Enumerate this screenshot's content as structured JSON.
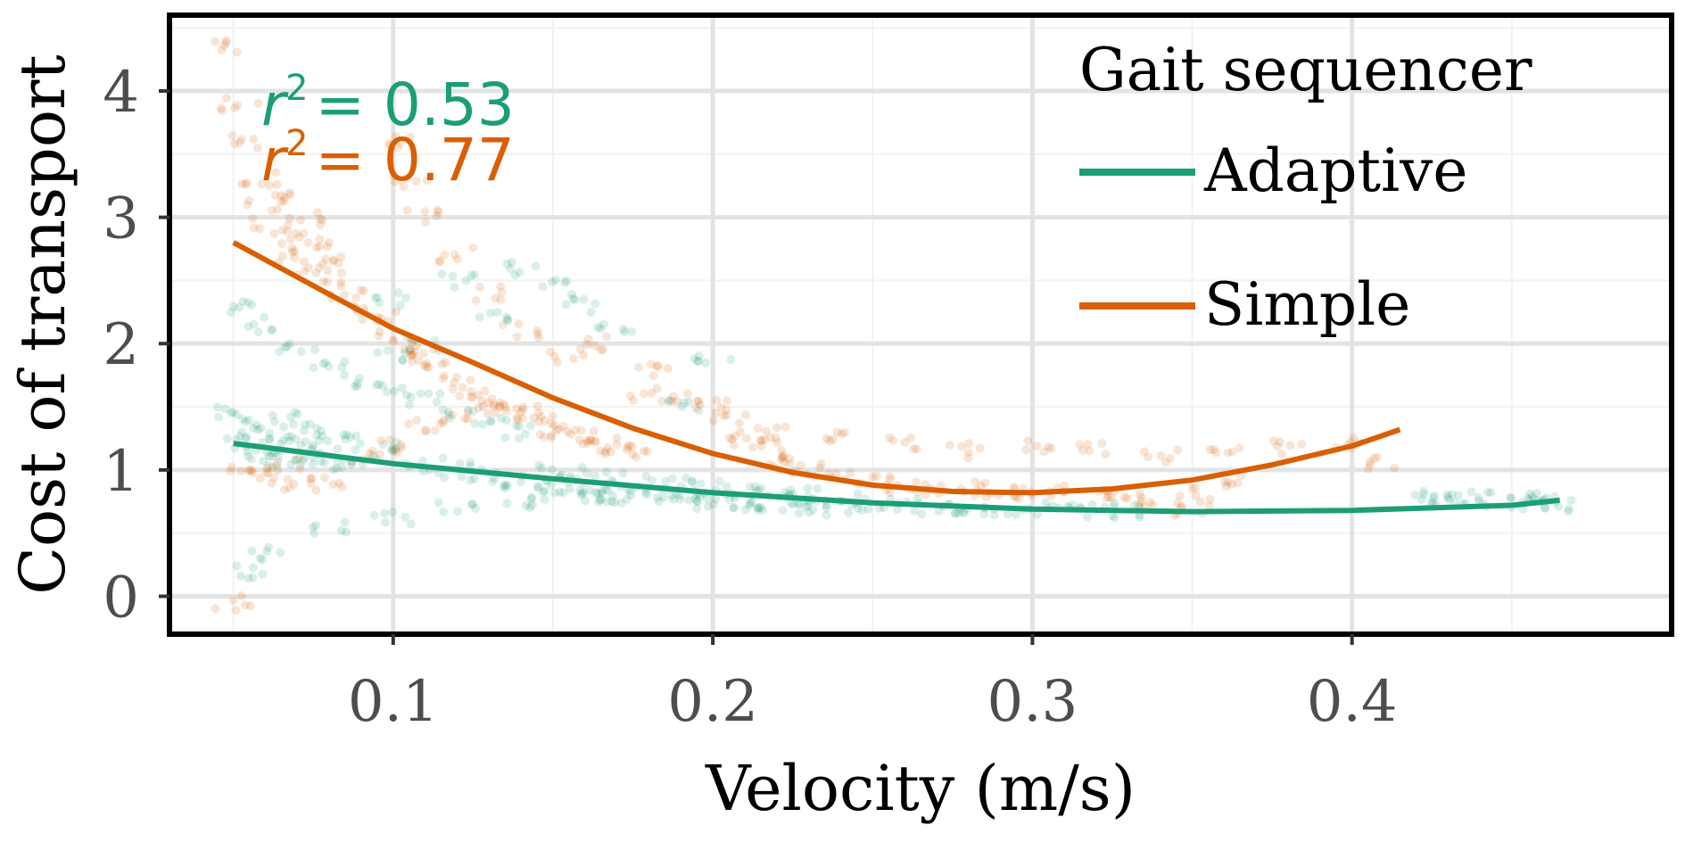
{
  "chart_data": {
    "type": "scatter",
    "title": "",
    "xlabel": "Velocity (m/s)",
    "ylabel": "Cost of transport",
    "xlim": [
      0.03,
      0.5
    ],
    "ylim": [
      -0.3,
      4.6
    ],
    "x_ticks": [
      0.1,
      0.2,
      0.3,
      0.4
    ],
    "x_tick_labels": [
      "0.1",
      "0.2",
      "0.3",
      "0.4"
    ],
    "y_ticks": [
      0,
      1,
      2,
      3,
      4
    ],
    "y_tick_labels": [
      "0",
      "1",
      "2",
      "3",
      "4"
    ],
    "grid": true,
    "legend": {
      "title": "Gait sequencer",
      "placement": "top-right",
      "entries": [
        "Adaptive",
        "Simple"
      ]
    },
    "series": [
      {
        "name": "Adaptive",
        "color": "#1b9e77",
        "r2_label": "r",
        "r2_value": "= 0.53",
        "fit_curve": [
          [
            0.05,
            1.21
          ],
          [
            0.1,
            1.05
          ],
          [
            0.15,
            0.93
          ],
          [
            0.2,
            0.82
          ],
          [
            0.25,
            0.74
          ],
          [
            0.3,
            0.69
          ],
          [
            0.35,
            0.67
          ],
          [
            0.4,
            0.68
          ],
          [
            0.45,
            0.72
          ],
          [
            0.465,
            0.76
          ]
        ],
        "points": [
          [
            0.05,
            1.45
          ],
          [
            0.052,
            1.3
          ],
          [
            0.055,
            1.18
          ],
          [
            0.058,
            1.35
          ],
          [
            0.06,
            1.12
          ],
          [
            0.062,
            1.25
          ],
          [
            0.065,
            1.4
          ],
          [
            0.067,
            1.05
          ],
          [
            0.07,
            1.2
          ],
          [
            0.072,
            1.32
          ],
          [
            0.075,
            1.1
          ],
          [
            0.078,
            1.28
          ],
          [
            0.08,
            1.15
          ],
          [
            0.082,
            1.02
          ],
          [
            0.085,
            1.22
          ],
          [
            0.05,
            2.3
          ],
          [
            0.06,
            2.15
          ],
          [
            0.07,
            1.95
          ],
          [
            0.08,
            1.85
          ],
          [
            0.09,
            1.72
          ],
          [
            0.1,
            1.65
          ],
          [
            0.11,
            1.55
          ],
          [
            0.12,
            1.45
          ],
          [
            0.13,
            1.38
          ],
          [
            0.14,
            1.3
          ],
          [
            0.09,
            1.1
          ],
          [
            0.1,
            1.2
          ],
          [
            0.11,
            1.05
          ],
          [
            0.12,
            1.0
          ],
          [
            0.13,
            0.95
          ],
          [
            0.14,
            0.9
          ],
          [
            0.15,
            0.88
          ],
          [
            0.16,
            0.85
          ],
          [
            0.17,
            0.82
          ],
          [
            0.18,
            0.8
          ],
          [
            0.19,
            0.78
          ],
          [
            0.2,
            0.76
          ],
          [
            0.21,
            0.75
          ],
          [
            0.22,
            0.74
          ],
          [
            0.23,
            0.73
          ],
          [
            0.24,
            0.72
          ],
          [
            0.25,
            0.72
          ],
          [
            0.26,
            0.71
          ],
          [
            0.27,
            0.7
          ],
          [
            0.28,
            0.7
          ],
          [
            0.29,
            0.69
          ],
          [
            0.3,
            0.69
          ],
          [
            0.31,
            0.68
          ],
          [
            0.32,
            0.68
          ],
          [
            0.33,
            0.67
          ],
          [
            0.15,
            1.0
          ],
          [
            0.16,
            0.97
          ],
          [
            0.17,
            0.93
          ],
          [
            0.18,
            0.9
          ],
          [
            0.19,
            0.88
          ],
          [
            0.2,
            0.86
          ],
          [
            0.21,
            0.84
          ],
          [
            0.22,
            0.82
          ],
          [
            0.23,
            0.8
          ],
          [
            0.24,
            0.78
          ],
          [
            0.15,
            0.82
          ],
          [
            0.17,
            0.78
          ],
          [
            0.19,
            0.74
          ],
          [
            0.21,
            0.72
          ],
          [
            0.23,
            0.7
          ],
          [
            0.1,
            2.35
          ],
          [
            0.12,
            2.5
          ],
          [
            0.14,
            2.6
          ],
          [
            0.15,
            2.45
          ],
          [
            0.16,
            2.3
          ],
          [
            0.17,
            2.15
          ],
          [
            0.13,
            2.2
          ],
          [
            0.11,
            2.0
          ],
          [
            0.1,
            1.9
          ],
          [
            0.06,
            0.35
          ],
          [
            0.08,
            0.55
          ],
          [
            0.1,
            0.62
          ],
          [
            0.12,
            0.7
          ],
          [
            0.14,
            0.75
          ],
          [
            0.16,
            0.8
          ],
          [
            0.055,
            0.2
          ],
          [
            0.2,
            1.9
          ],
          [
            0.19,
            1.5
          ],
          [
            0.42,
            0.8
          ],
          [
            0.43,
            0.78
          ],
          [
            0.44,
            0.77
          ],
          [
            0.45,
            0.75
          ],
          [
            0.46,
            0.74
          ],
          [
            0.465,
            0.73
          ],
          [
            0.455,
            0.76
          ],
          [
            0.435,
            0.79
          ]
        ]
      },
      {
        "name": "Simple",
        "color": "#d95f02",
        "r2_label": "r",
        "r2_value": "= 0.77",
        "fit_curve": [
          [
            0.05,
            2.8
          ],
          [
            0.08,
            2.39
          ],
          [
            0.1,
            2.12
          ],
          [
            0.125,
            1.85
          ],
          [
            0.15,
            1.57
          ],
          [
            0.175,
            1.33
          ],
          [
            0.2,
            1.13
          ],
          [
            0.225,
            0.98
          ],
          [
            0.25,
            0.88
          ],
          [
            0.275,
            0.83
          ],
          [
            0.3,
            0.82
          ],
          [
            0.325,
            0.85
          ],
          [
            0.35,
            0.92
          ],
          [
            0.375,
            1.04
          ],
          [
            0.4,
            1.19
          ],
          [
            0.415,
            1.32
          ]
        ],
        "points": [
          [
            0.05,
            4.35
          ],
          [
            0.052,
            3.9
          ],
          [
            0.055,
            3.6
          ],
          [
            0.058,
            3.3
          ],
          [
            0.06,
            3.1
          ],
          [
            0.062,
            2.95
          ],
          [
            0.065,
            3.2
          ],
          [
            0.068,
            2.85
          ],
          [
            0.07,
            2.7
          ],
          [
            0.072,
            3.0
          ],
          [
            0.075,
            2.6
          ],
          [
            0.078,
            2.8
          ],
          [
            0.08,
            2.5
          ],
          [
            0.083,
            2.65
          ],
          [
            0.085,
            2.4
          ],
          [
            0.09,
            2.3
          ],
          [
            0.095,
            2.2
          ],
          [
            0.1,
            2.05
          ],
          [
            0.105,
            1.95
          ],
          [
            0.11,
            1.9
          ],
          [
            0.115,
            1.8
          ],
          [
            0.12,
            1.7
          ],
          [
            0.125,
            1.62
          ],
          [
            0.13,
            1.55
          ],
          [
            0.135,
            1.5
          ],
          [
            0.14,
            1.45
          ],
          [
            0.145,
            1.38
          ],
          [
            0.15,
            1.32
          ],
          [
            0.155,
            1.28
          ],
          [
            0.16,
            1.25
          ],
          [
            0.165,
            1.2
          ],
          [
            0.17,
            1.18
          ],
          [
            0.175,
            1.15
          ],
          [
            0.18,
            1.6
          ],
          [
            0.19,
            1.55
          ],
          [
            0.2,
            1.5
          ],
          [
            0.205,
            1.4
          ],
          [
            0.21,
            1.25
          ],
          [
            0.215,
            1.2
          ],
          [
            0.22,
            1.1
          ],
          [
            0.225,
            1.05
          ],
          [
            0.23,
            1.0
          ],
          [
            0.24,
            0.95
          ],
          [
            0.25,
            0.9
          ],
          [
            0.26,
            0.88
          ],
          [
            0.27,
            0.86
          ],
          [
            0.28,
            0.85
          ],
          [
            0.29,
            0.84
          ],
          [
            0.3,
            0.83
          ],
          [
            0.31,
            0.82
          ],
          [
            0.32,
            0.8
          ],
          [
            0.33,
            0.78
          ],
          [
            0.34,
            0.75
          ],
          [
            0.35,
            0.7
          ],
          [
            0.055,
            1.0
          ],
          [
            0.06,
            0.95
          ],
          [
            0.065,
            1.05
          ],
          [
            0.07,
            0.9
          ],
          [
            0.08,
            0.92
          ],
          [
            0.09,
            1.1
          ],
          [
            0.1,
            1.2
          ],
          [
            0.11,
            1.35
          ],
          [
            0.12,
            1.4
          ],
          [
            0.13,
            1.5
          ],
          [
            0.1,
            3.6
          ],
          [
            0.105,
            3.3
          ],
          [
            0.11,
            3.0
          ],
          [
            0.12,
            2.7
          ],
          [
            0.13,
            2.4
          ],
          [
            0.14,
            2.1
          ],
          [
            0.155,
            1.9
          ],
          [
            0.165,
            2.0
          ],
          [
            0.18,
            1.8
          ],
          [
            0.22,
            1.3
          ],
          [
            0.24,
            1.25
          ],
          [
            0.26,
            1.2
          ],
          [
            0.28,
            1.15
          ],
          [
            0.3,
            1.18
          ],
          [
            0.32,
            1.15
          ],
          [
            0.34,
            1.12
          ],
          [
            0.36,
            1.15
          ],
          [
            0.38,
            1.18
          ],
          [
            0.4,
            1.2
          ],
          [
            0.41,
            1.05
          ],
          [
            0.35,
            0.8
          ],
          [
            0.36,
            0.9
          ],
          [
            0.05,
            -0.05
          ]
        ]
      }
    ]
  }
}
